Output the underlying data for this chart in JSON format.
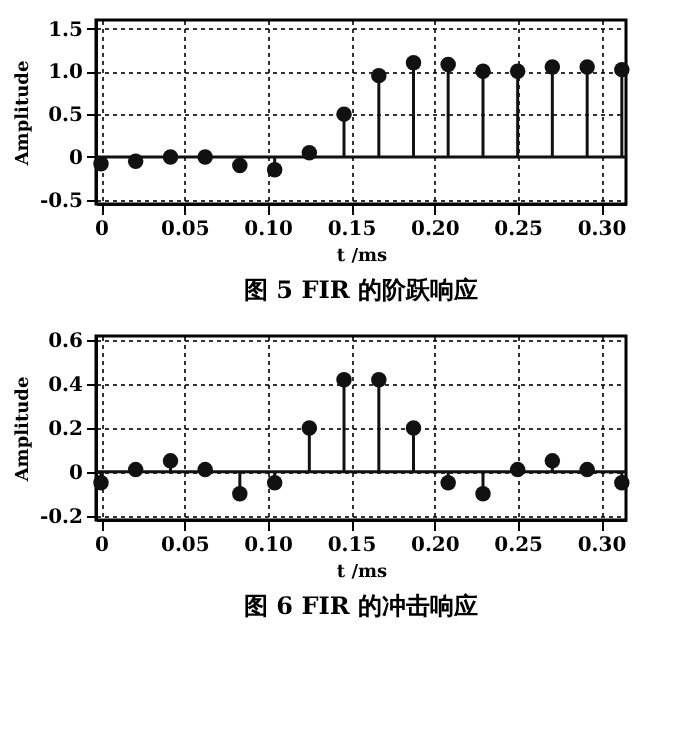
{
  "chart_data": [
    {
      "type": "lollipop",
      "title": "图 5  FIR 的阶跃响应",
      "xlabel": "t /ms",
      "ylabel": "Amplitude",
      "x": [
        0,
        0.0208,
        0.0417,
        0.0625,
        0.0833,
        0.1042,
        0.125,
        0.1458,
        0.1667,
        0.1875,
        0.2083,
        0.2292,
        0.25,
        0.2708,
        0.2917,
        0.3125
      ],
      "values": [
        -0.08,
        -0.05,
        0,
        0,
        -0.1,
        -0.15,
        0.05,
        0.5,
        0.95,
        1.1,
        1.08,
        1.0,
        1.0,
        1.05,
        1.05,
        1.02
      ],
      "color": "#111111",
      "marker": "circle",
      "grid": true,
      "xlim": [
        -0.003,
        0.315
      ],
      "xticks": [
        0,
        0.05,
        {
          "value": 0.1,
          "label": "0.10"
        },
        0.15,
        {
          "value": 0.2,
          "label": "0.20"
        },
        0.25,
        {
          "value": 0.3,
          "label": "0.30"
        }
      ],
      "ylim": [
        -0.55,
        1.6
      ],
      "yticks": [
        -0.5,
        0,
        0.5,
        {
          "value": 1.0,
          "label": "1.0"
        },
        1.5
      ]
    },
    {
      "type": "lollipop",
      "title": "图 6  FIR 的冲击响应",
      "xlabel": "t /ms",
      "ylabel": "Amplitude",
      "x": [
        0,
        0.0208,
        0.0417,
        0.0625,
        0.0833,
        0.1042,
        0.125,
        0.1458,
        0.1667,
        0.1875,
        0.2083,
        0.2292,
        0.25,
        0.2708,
        0.2917,
        0.3125
      ],
      "values": [
        -0.05,
        0.01,
        0.05,
        0.01,
        -0.1,
        -0.05,
        0.2,
        0.42,
        0.42,
        0.2,
        -0.05,
        -0.1,
        0.01,
        0.05,
        0.01,
        -0.05
      ],
      "color": "#111111",
      "marker": "circle",
      "grid": true,
      "xlim": [
        -0.003,
        0.315
      ],
      "xticks": [
        0,
        0.05,
        {
          "value": 0.1,
          "label": "0.10"
        },
        0.15,
        {
          "value": 0.2,
          "label": "0.20"
        },
        0.25,
        {
          "value": 0.3,
          "label": "0.30"
        }
      ],
      "ylim": [
        -0.22,
        0.62
      ],
      "yticks": [
        -0.2,
        0,
        0.2,
        0.4,
        0.6
      ]
    }
  ]
}
